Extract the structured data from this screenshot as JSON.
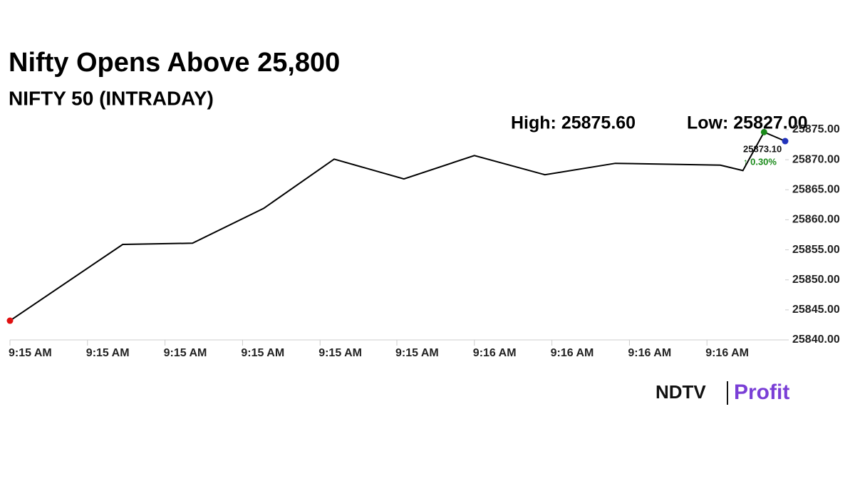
{
  "chart_data": {
    "type": "line",
    "title": "Nifty Opens Above 25,800",
    "subtitle": "NIFTY 50 (INTRADAY)",
    "annotations": {
      "high": "High: 25875.60",
      "low": "Low: 25827.00",
      "last_value": "25873.10",
      "change": "↑ 0.30%"
    },
    "x": [
      0,
      1.6,
      2.59,
      3.6,
      4.6,
      5.59,
      6.59,
      7.59,
      8.59,
      10.08,
      10.4,
      10.7,
      11
    ],
    "series": [
      {
        "name": "NIFTY 50",
        "color": "#000000",
        "values": [
          25843.2,
          25855.9,
          25856.1,
          25861.9,
          25870.1,
          25866.8,
          25870.7,
          25867.5,
          25869.4,
          25869.1,
          25868.2,
          25874.6,
          25873.1
        ]
      }
    ],
    "marker_colors": {
      "first": "#e01010",
      "max": "#1a8a1a",
      "last": "#2233bb"
    },
    "xlim": [
      0,
      11
    ],
    "xticks": [
      {
        "value": 0,
        "label": "9:15 AM"
      },
      {
        "value": 1.1,
        "label": "9:15 AM"
      },
      {
        "value": 2.2,
        "label": "9:15 AM"
      },
      {
        "value": 3.3,
        "label": "9:15 AM"
      },
      {
        "value": 4.4,
        "label": "9:15 AM"
      },
      {
        "value": 5.49,
        "label": "9:15 AM"
      },
      {
        "value": 6.59,
        "label": "9:16 AM"
      },
      {
        "value": 7.69,
        "label": "9:16 AM"
      },
      {
        "value": 8.79,
        "label": "9:16 AM"
      },
      {
        "value": 9.89,
        "label": "9:16 AM"
      }
    ],
    "ylim": [
      25840,
      25875
    ],
    "yticks": [
      {
        "value": 25840,
        "label": "25840.00"
      },
      {
        "value": 25845,
        "label": "25845.00"
      },
      {
        "value": 25850,
        "label": "25850.00"
      },
      {
        "value": 25855,
        "label": "25855.00"
      },
      {
        "value": 25860,
        "label": "25860.00"
      },
      {
        "value": 25865,
        "label": "25865.00"
      },
      {
        "value": 25870,
        "label": "25870.00"
      },
      {
        "value": 25875,
        "label": "25875.00"
      }
    ],
    "grid": false,
    "logo": {
      "brand": "NDTV",
      "product": "Profit"
    }
  }
}
